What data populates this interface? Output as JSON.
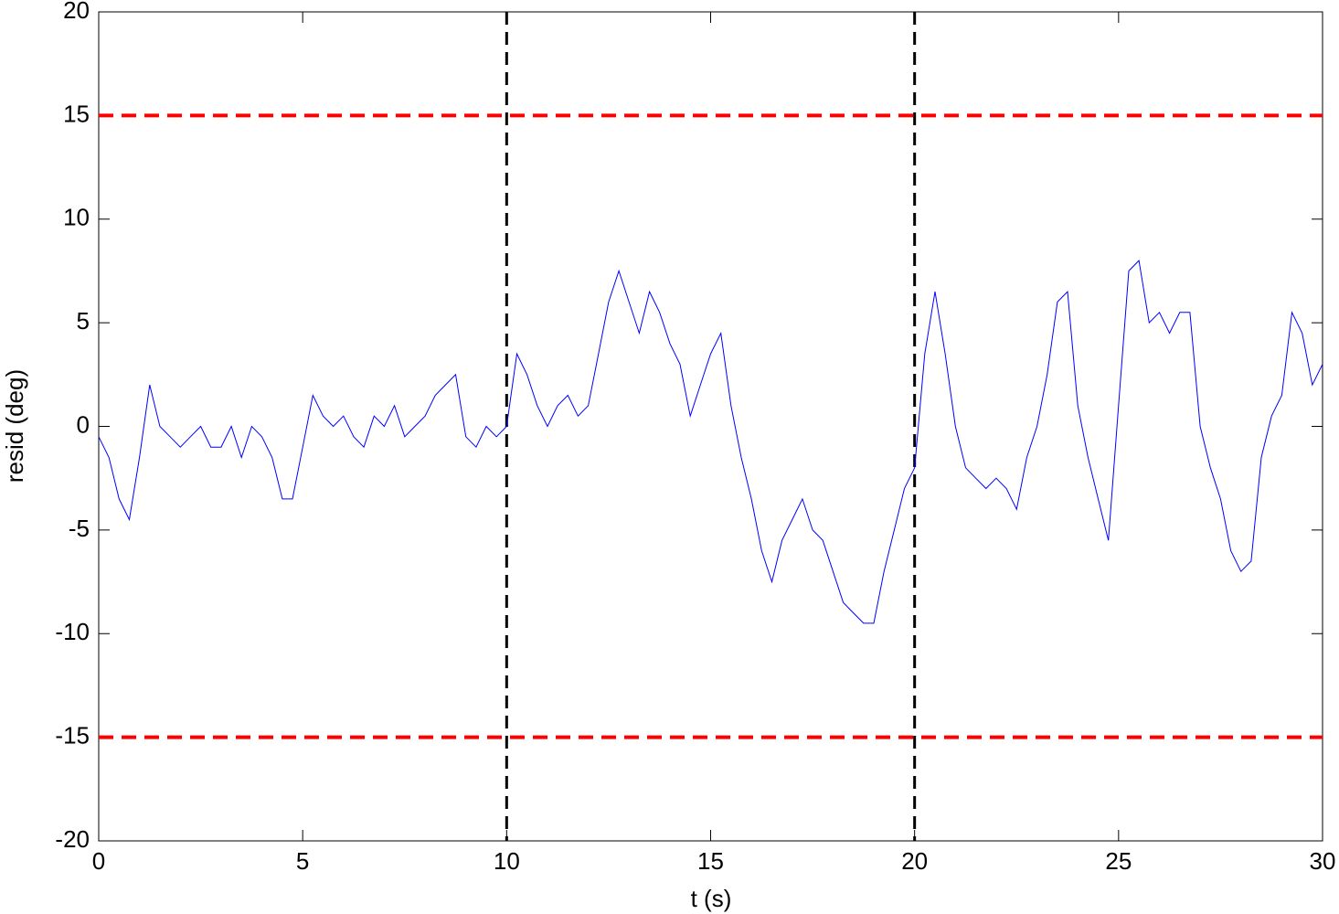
{
  "chart_data": {
    "type": "line",
    "xlabel": "t (s)",
    "ylabel": "resid (deg)",
    "x": [
      0,
      0.25,
      0.5,
      0.75,
      1,
      1.25,
      1.5,
      1.75,
      2,
      2.25,
      2.5,
      2.75,
      3,
      3.25,
      3.5,
      3.75,
      4,
      4.25,
      4.5,
      4.75,
      5,
      5.25,
      5.5,
      5.75,
      6,
      6.25,
      6.5,
      6.75,
      7,
      7.25,
      7.5,
      7.75,
      8,
      8.25,
      8.5,
      8.75,
      9,
      9.25,
      9.5,
      9.75,
      10,
      10.25,
      10.5,
      10.75,
      11,
      11.25,
      11.5,
      11.75,
      12,
      12.25,
      12.5,
      12.75,
      13,
      13.25,
      13.5,
      13.75,
      14,
      14.25,
      14.5,
      14.75,
      15,
      15.25,
      15.5,
      15.75,
      16,
      16.25,
      16.5,
      16.75,
      17,
      17.25,
      17.5,
      17.75,
      18,
      18.25,
      18.5,
      18.75,
      19,
      19.25,
      19.5,
      19.75,
      20,
      20.25,
      20.5,
      20.75,
      21,
      21.25,
      21.5,
      21.75,
      22,
      22.25,
      22.5,
      22.75,
      23,
      23.25,
      23.5,
      23.75,
      24,
      24.25,
      24.5,
      24.75,
      25,
      25.25,
      25.5,
      25.75,
      26,
      26.25,
      26.5,
      26.75,
      27,
      27.25,
      27.5,
      27.75,
      28,
      28.25,
      28.5,
      28.75,
      29,
      29.25,
      29.5,
      29.75,
      30
    ],
    "values": [
      -0.5,
      -1.5,
      -3.5,
      -4.5,
      -1.5,
      2,
      0,
      -0.5,
      -1,
      -0.5,
      0,
      -1,
      -1,
      0,
      -1.5,
      0,
      -0.5,
      -1.5,
      -3.5,
      -3.5,
      -1,
      1.5,
      0.5,
      0,
      0.5,
      -0.5,
      -1,
      0.5,
      0,
      1,
      -0.5,
      0,
      0.5,
      1.5,
      2,
      2.5,
      -0.5,
      -1,
      0,
      -0.5,
      0,
      3.5,
      2.5,
      1,
      0,
      1,
      1.5,
      0.5,
      1,
      3.5,
      6,
      7.5,
      6,
      4.5,
      6.5,
      5.5,
      4,
      3,
      0.5,
      2,
      3.5,
      4.5,
      1,
      -1.5,
      -3.5,
      -6,
      -7.5,
      -5.5,
      -4.5,
      -3.5,
      -5,
      -5.5,
      -7,
      -8.5,
      -9,
      -9.5,
      -9.5,
      -7,
      -5,
      -3,
      -2,
      3.5,
      6.5,
      3.5,
      0,
      -2,
      -2.5,
      -3,
      -2.5,
      -3,
      -4,
      -1.5,
      0,
      2.5,
      6,
      6.5,
      1,
      -1.5,
      -3.5,
      -5.5,
      1,
      7.5,
      8,
      5,
      5.5,
      4.5,
      5.5,
      5.5,
      0,
      -2,
      -3.5,
      -6,
      -7,
      -6.5,
      -1.5,
      0.5,
      1.5,
      5.5,
      4.5,
      2,
      3
    ],
    "color": "#0000ff",
    "hlines": {
      "values": [
        15,
        -15
      ],
      "color": "#ff0000"
    },
    "vlines": {
      "values": [
        10,
        20
      ],
      "color": "#000000"
    },
    "xlim": [
      0,
      30
    ],
    "xticks": [
      0,
      5,
      10,
      15,
      20,
      25,
      30
    ],
    "ylim": [
      -20,
      20
    ],
    "yticks": [
      -20,
      -15,
      -10,
      -5,
      0,
      5,
      10,
      15,
      20
    ],
    "grid": false
  }
}
